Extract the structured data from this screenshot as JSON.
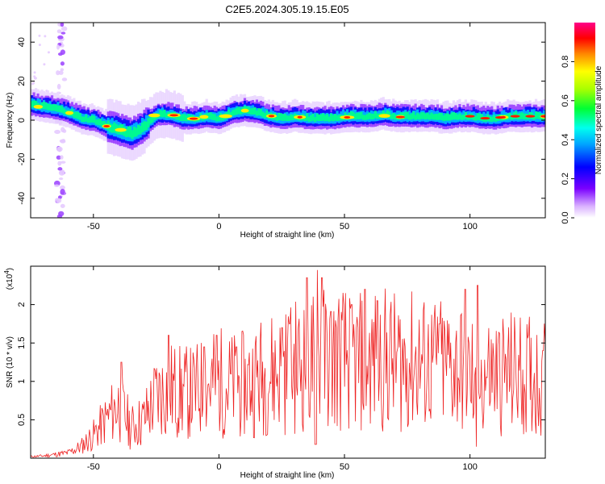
{
  "chart_data": [
    {
      "type": "heatmap",
      "title": "C2E5.2024.305.19.15.E05",
      "xlabel": "Height of straight line (km)",
      "ylabel": "Frequency (Hz)",
      "xlim": [
        -75,
        130
      ],
      "ylim": [
        -50,
        50
      ],
      "xticks": [
        -50,
        0,
        50,
        100
      ],
      "yticks": [
        -40,
        -20,
        0,
        20,
        40
      ],
      "colorbar": {
        "label": "Normalized spectral amplitude",
        "range": [
          0.0,
          1.0
        ],
        "ticks": [
          0.0,
          0.2,
          0.4,
          0.6,
          0.8
        ]
      },
      "ridge": {
        "x": [
          -75,
          -70,
          -65,
          -60,
          -55,
          -50,
          -45,
          -40,
          -35,
          -30,
          -25,
          -20,
          -15,
          -10,
          -5,
          0,
          5,
          10,
          15,
          20,
          25,
          30,
          35,
          40,
          45,
          50,
          55,
          60,
          65,
          70,
          75,
          80,
          85,
          90,
          95,
          100,
          105,
          110,
          115,
          120,
          125,
          130
        ],
        "y": [
          8,
          7,
          6,
          4,
          1,
          0,
          -3,
          -5,
          -7,
          -3,
          3,
          3,
          1,
          1,
          2,
          1,
          4,
          5,
          4,
          2,
          1,
          2,
          1,
          1,
          1,
          2,
          2,
          2,
          3,
          2,
          2,
          2,
          2,
          1,
          2,
          2,
          1,
          1,
          2,
          2,
          2,
          2
        ]
      }
    },
    {
      "type": "line",
      "xlabel": "Height of straight line (km)",
      "ylabel": "SNR (10 * v/v)",
      "yscale_label": "(x10",
      "yscale_exp": "4",
      "xlim": [
        -75,
        130
      ],
      "ylim": [
        0,
        2.5
      ],
      "xticks": [
        -50,
        0,
        50,
        100
      ],
      "yticks": [
        0.5,
        1.0,
        1.5,
        2.0
      ],
      "color": "#ee2222",
      "series": [
        {
          "name": "SNR",
          "x": [
            -75,
            -70,
            -65,
            -60,
            -55,
            -50,
            -45,
            -40,
            -35,
            -30,
            -25,
            -20,
            -15,
            -10,
            -5,
            0,
            5,
            10,
            15,
            20,
            25,
            30,
            35,
            40,
            45,
            50,
            55,
            60,
            65,
            70,
            75,
            80,
            85,
            90,
            95,
            100,
            105,
            110,
            115,
            120,
            125,
            130
          ],
          "y": [
            0.02,
            0.03,
            0.05,
            0.07,
            0.15,
            0.3,
            0.5,
            0.7,
            0.4,
            0.5,
            0.8,
            0.9,
            0.85,
            0.85,
            0.95,
            1.0,
            0.95,
            0.95,
            1.05,
            1.1,
            1.15,
            1.2,
            1.25,
            1.3,
            1.3,
            1.3,
            1.25,
            1.25,
            1.3,
            1.25,
            1.25,
            1.25,
            1.2,
            1.2,
            1.2,
            1.1,
            1.1,
            1.1,
            1.1,
            1.1,
            1.05,
            1.05
          ]
        }
      ],
      "peaks": {
        "x": [
          -39,
          -20,
          -6,
          -1,
          7,
          25,
          28,
          35,
          39,
          41,
          53,
          58,
          63,
          88,
          98,
          103,
          129
        ],
        "y": [
          1.25,
          1.6,
          1.45,
          1.6,
          1.45,
          1.7,
          1.75,
          2.35,
          2.45,
          2.35,
          2.0,
          2.2,
          2.05,
          1.75,
          2.2,
          2.25,
          1.4
        ]
      }
    }
  ]
}
